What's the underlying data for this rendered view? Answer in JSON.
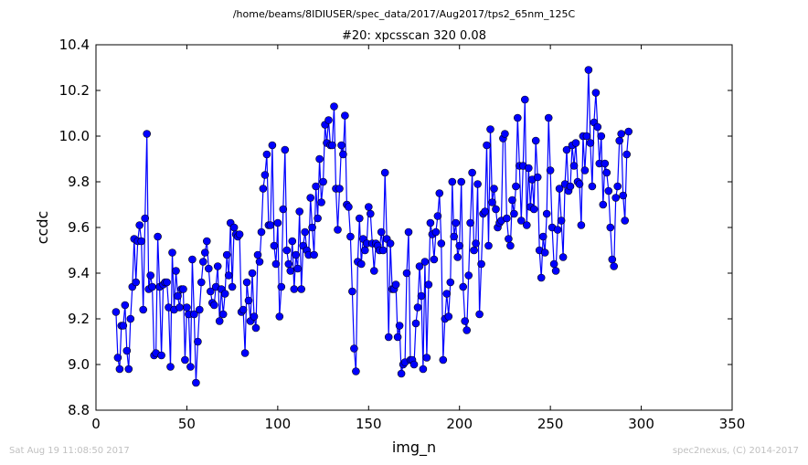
{
  "header": {
    "path": "/home/beams/8IDIUSER/spec_data/2017/Aug2017/tps2_65nm_125C"
  },
  "footer": {
    "timestamp": "Sat Aug 19 11:08:50 2017",
    "credit": "spec2nexus, (C) 2014-2017"
  },
  "chart_data": {
    "type": "line",
    "title": "#20: xpcsscan 320 0.08",
    "xlabel": "img_n",
    "ylabel": "ccdc",
    "xlim": [
      0,
      350
    ],
    "ylim": [
      8.8,
      10.4
    ],
    "xticks": [
      0,
      50,
      100,
      150,
      200,
      250,
      300,
      350
    ],
    "yticks": [
      8.8,
      9.0,
      9.2,
      9.4,
      9.6,
      9.8,
      10.0,
      10.2,
      10.4
    ],
    "xtick_labels": [
      "0",
      "50",
      "100",
      "150",
      "200",
      "250",
      "300",
      "350"
    ],
    "ytick_labels": [
      "8.8",
      "9.0",
      "9.2",
      "9.4",
      "9.6",
      "9.8",
      "10.0",
      "10.2",
      "10.4"
    ],
    "grid": false,
    "line_color": "#0000ff",
    "marker": "circle",
    "series": [
      {
        "x_start": 11,
        "x_step": 1,
        "values": [
          9.23,
          9.03,
          8.98,
          9.17,
          9.17,
          9.26,
          9.06,
          8.98,
          9.2,
          9.34,
          9.55,
          9.36,
          9.54,
          9.61,
          9.54,
          9.24,
          9.64,
          10.01,
          9.33,
          9.39,
          9.34,
          9.04,
          9.05,
          9.56,
          9.34,
          9.04,
          9.35,
          9.36,
          9.36,
          9.25,
          8.99,
          9.49,
          9.24,
          9.41,
          9.3,
          9.25,
          9.33,
          9.33,
          9.02,
          9.25,
          9.22,
          8.99,
          9.46,
          9.22,
          8.92,
          9.1,
          9.24,
          9.36,
          9.45,
          9.49,
          9.54,
          9.42,
          9.32,
          9.27,
          9.26,
          9.34,
          9.43,
          9.19,
          9.33,
          9.22,
          9.31,
          9.48,
          9.39,
          9.62,
          9.34,
          9.6,
          9.57,
          9.56,
          9.57,
          9.23,
          9.24,
          9.05,
          9.36,
          9.28,
          9.19,
          9.4,
          9.21,
          9.16,
          9.48,
          9.45,
          9.58,
          9.77,
          9.83,
          9.92,
          9.61,
          9.61,
          9.96,
          9.52,
          9.44,
          9.62,
          9.21,
          9.34,
          9.68,
          9.94,
          9.5,
          9.44,
          9.41,
          9.54,
          9.33,
          9.48,
          9.42,
          9.67,
          9.33,
          9.52,
          9.58,
          9.5,
          9.48,
          9.73,
          9.6,
          9.48,
          9.78,
          9.64,
          9.9,
          9.71,
          9.8,
          10.05,
          9.97,
          10.07,
          9.96,
          9.96,
          10.13,
          9.77,
          9.59,
          9.77,
          9.96,
          9.92,
          10.09,
          9.7,
          9.69,
          9.56,
          9.32,
          9.07,
          8.97,
          9.45,
          9.64,
          9.44,
          9.55,
          9.5,
          9.53,
          9.69,
          9.66,
          9.53,
          9.41,
          9.53,
          9.52,
          9.5,
          9.58,
          9.5,
          9.84,
          9.55,
          9.12,
          9.53,
          9.33,
          9.33,
          9.35,
          9.12,
          9.17,
          8.96,
          9.0,
          9.01,
          9.4,
          9.58,
          9.02,
          9.02,
          9.0,
          9.18,
          9.25,
          9.43,
          9.3,
          8.98,
          9.45,
          9.03,
          9.35,
          9.62,
          9.57,
          9.46,
          9.58,
          9.65,
          9.75,
          9.53,
          9.02,
          9.2,
          9.31,
          9.21,
          9.36,
          9.8,
          9.56,
          9.62,
          9.47,
          9.52,
          9.8,
          9.34,
          9.19,
          9.15,
          9.39,
          9.62,
          9.84,
          9.5,
          9.53,
          9.79,
          9.22,
          9.44,
          9.66,
          9.67,
          9.96,
          9.52,
          10.03,
          9.71,
          9.77,
          9.68,
          9.6,
          9.62,
          9.63,
          9.99,
          10.01,
          9.64,
          9.55,
          9.52,
          9.72,
          9.66,
          9.78,
          10.08,
          9.87,
          9.63,
          9.87,
          10.16,
          9.61,
          9.86,
          9.69,
          9.81,
          9.68,
          9.98,
          9.82,
          9.5,
          9.38,
          9.56,
          9.49,
          9.66,
          10.08,
          9.85,
          9.6,
          9.44,
          9.41,
          9.59,
          9.77,
          9.63,
          9.47,
          9.79,
          9.94,
          9.76,
          9.78,
          9.96,
          9.87,
          9.97,
          9.8,
          9.79,
          9.61,
          10.0,
          9.85,
          10.0,
          10.29,
          9.97,
          9.78,
          10.06,
          10.19,
          10.04,
          9.88,
          10.0,
          9.7,
          9.88,
          9.84,
          9.76,
          9.6,
          9.46,
          9.43,
          9.73,
          9.78,
          9.98,
          10.01,
          9.74,
          9.63,
          9.92,
          10.02
        ]
      }
    ]
  }
}
